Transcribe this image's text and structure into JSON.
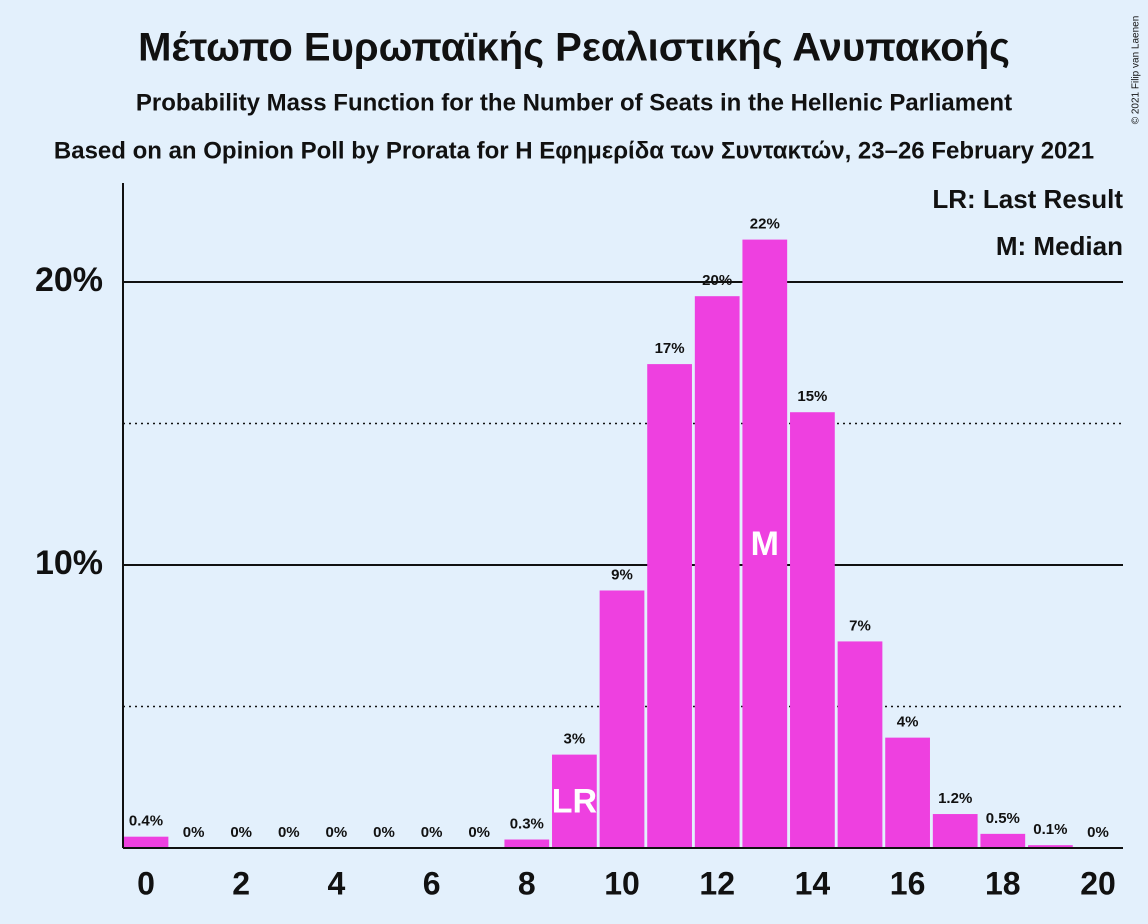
{
  "chart_data": {
    "type": "bar",
    "title": "Μέτωπο Ευρωπαϊκής Ρεαλιστικής Ανυπακοής",
    "subtitle": "Probability Mass Function for the Number of Seats in the Hellenic Parliament",
    "caption": "Based on an Opinion Poll by Prorata for Η Εφημερίδα των Συντακτών, 23–26 February 2021",
    "credit": "© 2021 Filip van Laenen",
    "x": [
      0,
      1,
      2,
      3,
      4,
      5,
      6,
      7,
      8,
      9,
      10,
      11,
      12,
      13,
      14,
      15,
      16,
      17,
      18,
      19,
      20
    ],
    "values": [
      0.4,
      0,
      0,
      0,
      0,
      0,
      0,
      0,
      0.3,
      3.3,
      9.1,
      17.1,
      19.5,
      21.5,
      15.4,
      7.3,
      3.9,
      1.2,
      0.5,
      0.1,
      0
    ],
    "value_labels": [
      "0.4%",
      "0%",
      "0%",
      "0%",
      "0%",
      "0%",
      "0%",
      "0%",
      "0.3%",
      "3%",
      "9%",
      "17%",
      "20%",
      "22%",
      "15%",
      "7%",
      "4%",
      "1.2%",
      "0.5%",
      "0.1%",
      "0%"
    ],
    "color": "#ee40e0",
    "xlim": [
      -0.5,
      20.5
    ],
    "xticks": [
      0,
      2,
      4,
      6,
      8,
      10,
      12,
      14,
      16,
      18,
      20
    ],
    "ylim": [
      0,
      23.5
    ],
    "yticks": [
      {
        "value": 10,
        "label": "10%"
      },
      {
        "value": 20,
        "label": "20%"
      }
    ],
    "minor_yticks": [
      5,
      15
    ],
    "annotations": [
      {
        "text": "LR",
        "x": 9
      },
      {
        "text": "M",
        "x": 13
      }
    ],
    "legend": [
      "LR: Last Result",
      "M: Median"
    ]
  }
}
